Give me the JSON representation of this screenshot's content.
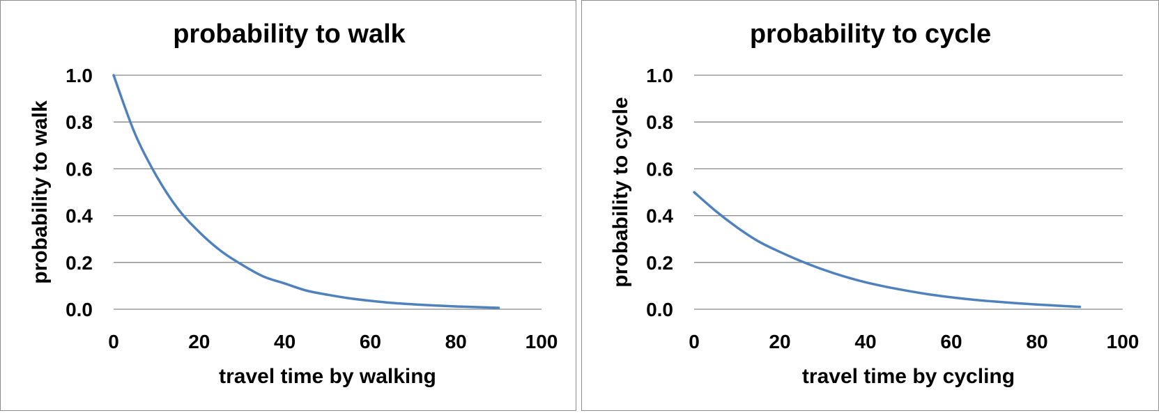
{
  "chart_data": [
    {
      "type": "line",
      "title": "probability to walk",
      "xlabel": "travel time by walking",
      "ylabel": "probability to walk",
      "xlim": [
        0,
        100
      ],
      "ylim": [
        0,
        1.0
      ],
      "x_ticks": [
        "0",
        "20",
        "40",
        "60",
        "80",
        "100"
      ],
      "y_ticks": [
        "0.0",
        "0.2",
        "0.4",
        "0.6",
        "0.8",
        "1.0"
      ],
      "grid": "horizontal",
      "legend": "none",
      "color": "#4F81BD",
      "series": [
        {
          "x": [
            0,
            5,
            10,
            15,
            20,
            25,
            30,
            35,
            40,
            45,
            50,
            55,
            60,
            65,
            70,
            75,
            80,
            85,
            90
          ],
          "values": [
            1.0,
            0.75,
            0.57,
            0.43,
            0.33,
            0.25,
            0.19,
            0.14,
            0.11,
            0.08,
            0.062,
            0.047,
            0.036,
            0.027,
            0.021,
            0.016,
            0.012,
            0.009,
            0.006
          ]
        }
      ]
    },
    {
      "type": "line",
      "title": "probability to cycle",
      "xlabel": "travel time by cycling",
      "ylabel": "probability to cycle",
      "xlim": [
        0,
        100
      ],
      "ylim": [
        0,
        1.0
      ],
      "x_ticks": [
        "0",
        "20",
        "40",
        "60",
        "80",
        "100"
      ],
      "y_ticks": [
        "0.0",
        "0.2",
        "0.4",
        "0.6",
        "0.8",
        "1.0"
      ],
      "grid": "horizontal",
      "legend": "none",
      "color": "#4F81BD",
      "series": [
        {
          "x": [
            0,
            5,
            10,
            15,
            20,
            25,
            30,
            35,
            40,
            45,
            50,
            55,
            60,
            65,
            70,
            75,
            80,
            85,
            90
          ],
          "values": [
            0.5,
            0.42,
            0.35,
            0.29,
            0.245,
            0.205,
            0.17,
            0.14,
            0.115,
            0.095,
            0.078,
            0.063,
            0.051,
            0.041,
            0.033,
            0.026,
            0.02,
            0.015,
            0.01
          ]
        }
      ]
    }
  ]
}
